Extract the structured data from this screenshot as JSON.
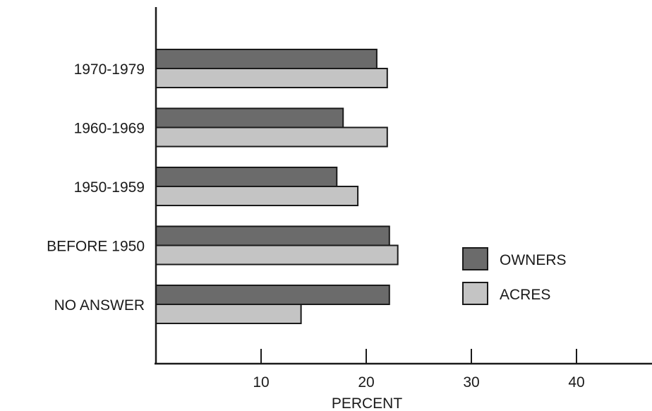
{
  "chart_data": {
    "type": "bar",
    "orientation": "horizontal",
    "categories": [
      "1970-1979",
      "1960-1969",
      "1950-1959",
      "BEFORE 1950",
      "NO ANSWER"
    ],
    "series": [
      {
        "name": "OWNERS",
        "values": [
          21.0,
          17.8,
          17.2,
          22.2,
          22.2
        ],
        "color": "#6b6b6b"
      },
      {
        "name": "ACRES",
        "values": [
          22.0,
          22.0,
          19.2,
          23.0,
          13.8
        ],
        "color": "#c4c4c4"
      }
    ],
    "xlabel": "PERCENT",
    "ticks": [
      10,
      20,
      30,
      40
    ],
    "tick_labels": [
      "10",
      "20",
      "30",
      "40"
    ],
    "xlim": [
      0,
      47
    ],
    "grid": false,
    "legend_position": "right"
  }
}
